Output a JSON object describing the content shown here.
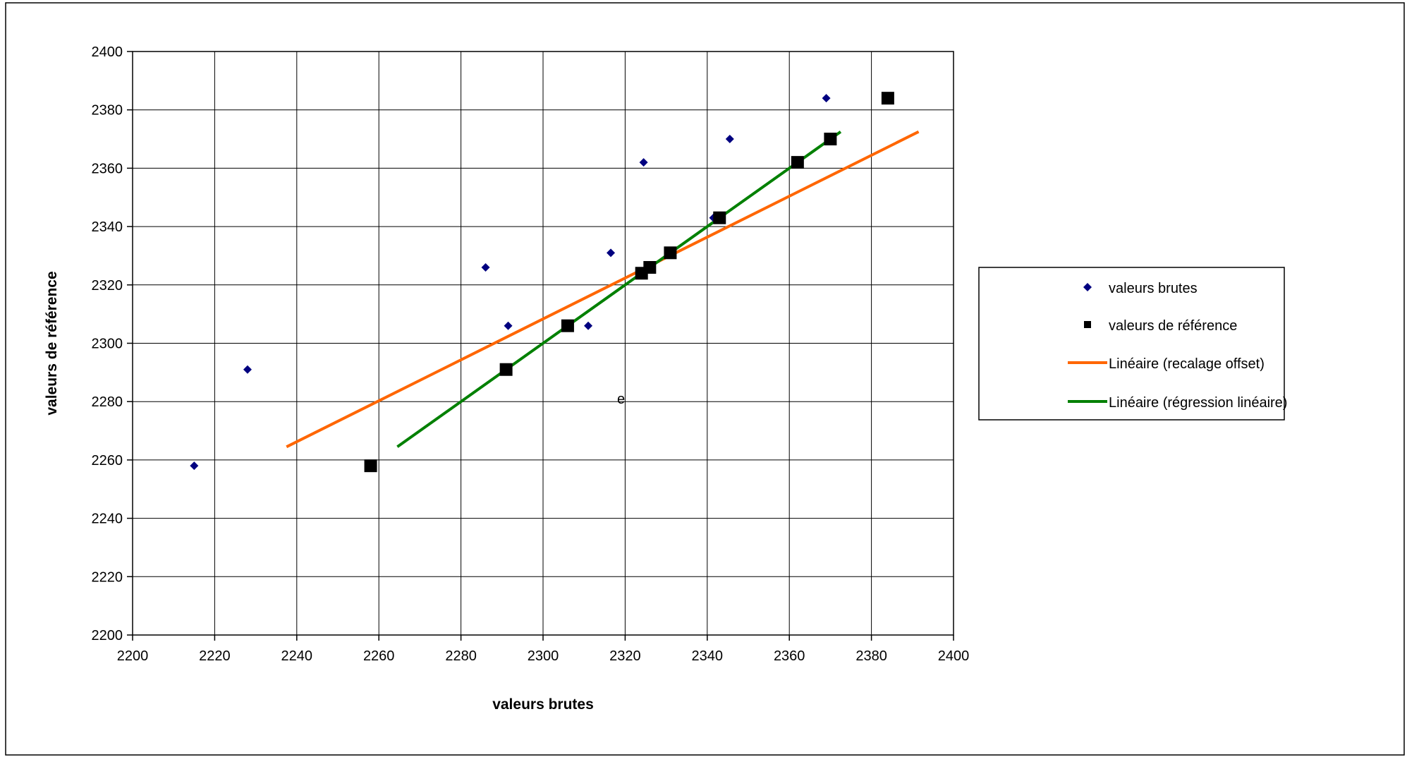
{
  "chart_data": {
    "type": "scatter",
    "title": "",
    "xlabel": "valeurs brutes",
    "ylabel": "valeurs de référence",
    "xlim": [
      2200,
      2400
    ],
    "ylim": [
      2200,
      2400
    ],
    "xticks": [
      2200,
      2220,
      2240,
      2260,
      2280,
      2300,
      2320,
      2340,
      2360,
      2380,
      2400
    ],
    "yticks": [
      2200,
      2220,
      2240,
      2260,
      2280,
      2300,
      2320,
      2340,
      2360,
      2380,
      2400
    ],
    "grid": true,
    "legend_position": "right",
    "annotation": "e",
    "annotation_at": [
      2319,
      2281
    ],
    "series": [
      {
        "name": "valeurs brutes",
        "kind": "points",
        "marker": "diamond",
        "color": "#000080",
        "points": [
          [
            2215,
            2258
          ],
          [
            2228,
            2291
          ],
          [
            2286,
            2326
          ],
          [
            2291.5,
            2306
          ],
          [
            2311,
            2306
          ],
          [
            2316.5,
            2331
          ],
          [
            2324.5,
            2362
          ],
          [
            2341.5,
            2343
          ],
          [
            2345.5,
            2370
          ],
          [
            2369,
            2384
          ]
        ]
      },
      {
        "name": "valeurs de référence",
        "kind": "points",
        "marker": "square",
        "color": "#000000",
        "points": [
          [
            2258,
            2258
          ],
          [
            2291,
            2291
          ],
          [
            2306,
            2306
          ],
          [
            2324,
            2324
          ],
          [
            2326,
            2326
          ],
          [
            2331,
            2331
          ],
          [
            2343,
            2343
          ],
          [
            2362,
            2362
          ],
          [
            2370,
            2370
          ],
          [
            2384,
            2384
          ]
        ]
      },
      {
        "name": "Linéaire (recalage offset)",
        "kind": "line",
        "color": "#ff6600",
        "points": [
          [
            2237.5,
            2264.5
          ],
          [
            2391.5,
            2372.5
          ]
        ]
      },
      {
        "name": "Linéaire (régression linéaire)",
        "kind": "line",
        "color": "#008000",
        "points": [
          [
            2264.5,
            2264.5
          ],
          [
            2372.5,
            2372.5
          ]
        ]
      }
    ]
  }
}
